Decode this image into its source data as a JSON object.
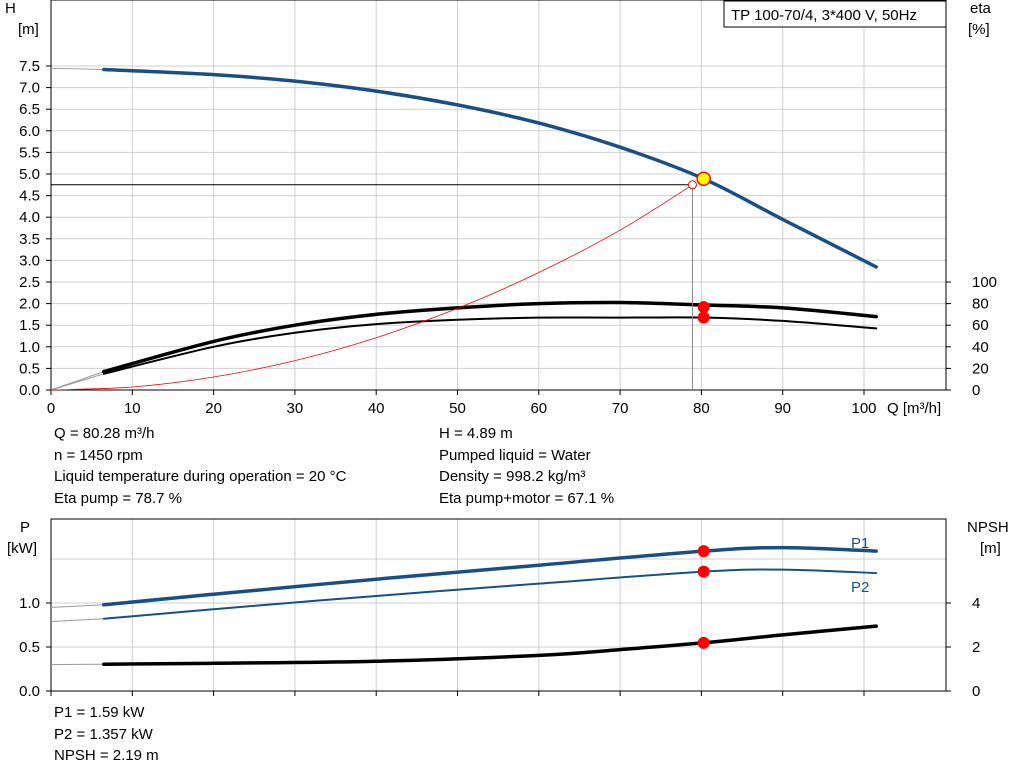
{
  "model_label": "TP 100-70/4, 3*400 V, 50Hz",
  "colors": {
    "blue": "#1a4f86",
    "black": "#000000",
    "red": "#ff0000",
    "grid": "#cfcfcf",
    "op_point": "#ffff00"
  },
  "top_chart": {
    "left_axis": {
      "label": "H",
      "unit": "[m]",
      "range": [
        0,
        7.5
      ],
      "ticks": [
        "0.0",
        "0.5",
        "1.0",
        "1.5",
        "2.0",
        "2.5",
        "3.0",
        "3.5",
        "4.0",
        "4.5",
        "5.0",
        "5.5",
        "6.0",
        "6.5",
        "7.0",
        "7.5"
      ]
    },
    "right_axis": {
      "label": "eta",
      "unit": "[%]",
      "range": [
        0,
        100
      ],
      "ticks": [
        "0",
        "20",
        "40",
        "60",
        "80",
        "100"
      ]
    },
    "x_axis": {
      "label": "Q [m³/h]",
      "range": [
        0,
        100
      ],
      "ticks": [
        "0",
        "10",
        "20",
        "30",
        "40",
        "50",
        "60",
        "70",
        "80",
        "90",
        "100"
      ]
    }
  },
  "bottom_chart": {
    "left_axis": {
      "label": "P",
      "unit": "[kW]",
      "ticks": [
        "0.0",
        "0.5",
        "1.0"
      ]
    },
    "right_axis": {
      "label": "NPSH",
      "unit": "[m]",
      "ticks": [
        "0",
        "2",
        "4"
      ]
    },
    "series_labels": {
      "p1": "P1",
      "p2": "P2"
    }
  },
  "info_top_left": [
    "Q = 80.28 m³/h",
    "n = 1450 rpm",
    "Liquid temperature during operation = 20 °C",
    "Eta pump = 78.7 %"
  ],
  "info_top_right": [
    "H = 4.89 m",
    "Pumped liquid = Water",
    "Density = 998.2 kg/m³",
    "Eta pump+motor = 67.1 %"
  ],
  "info_bottom": [
    "P1 = 1.59 kW",
    "P2 = 1.357 kW",
    "NPSH = 2.19 m"
  ],
  "chart_data": [
    {
      "type": "line",
      "title": "TP 100-70/4, 3*400 V, 50Hz",
      "xlabel": "Q [m³/h]",
      "ylabel": "H [m]",
      "ylabel_right": "eta [%]",
      "xlim": [
        0,
        100
      ],
      "ylim": [
        0,
        7.5
      ],
      "ylim_right": [
        0,
        100
      ],
      "grid": true,
      "operating_point": {
        "Q": 80.28,
        "H": 4.89
      },
      "series": [
        {
          "name": "H",
          "axis": "left",
          "x": [
            0,
            6.5,
            20,
            30,
            40,
            50,
            60,
            70,
            80.28,
            90,
            101.5
          ],
          "y": [
            7.45,
            7.42,
            7.3,
            7.15,
            6.92,
            6.6,
            6.18,
            5.62,
            4.89,
            3.95,
            2.85
          ]
        },
        {
          "name": "Eta pump+motor",
          "axis": "right",
          "x": [
            0,
            6.5,
            20,
            30,
            40,
            50,
            60,
            70,
            80.28,
            90,
            101.5
          ],
          "y": [
            0,
            15,
            40,
            53,
            61,
            65,
            67,
            67,
            67.1,
            64,
            57
          ]
        },
        {
          "name": "Eta pump",
          "axis": "right",
          "x": [
            0,
            6.5,
            20,
            30,
            40,
            50,
            60,
            70,
            80.28,
            90,
            101.5
          ],
          "y": [
            0,
            17,
            45,
            60,
            70,
            76,
            80,
            81,
            78.7,
            76,
            68
          ]
        },
        {
          "name": "System curve",
          "axis": "left",
          "x": [
            0,
            10,
            20,
            30,
            40,
            50,
            60,
            70,
            78.9
          ],
          "y": [
            0,
            0.07,
            0.3,
            0.68,
            1.21,
            1.89,
            2.72,
            3.7,
            4.75
          ]
        }
      ]
    },
    {
      "type": "line",
      "ylabel": "P [kW]",
      "ylabel_right": "NPSH [m]",
      "xlim": [
        0,
        100
      ],
      "ylim": [
        0,
        1.7
      ],
      "ylim_right": [
        0,
        6.8
      ],
      "grid": true,
      "operating_point": {
        "Q": 80.28,
        "P1": 1.59,
        "P2": 1.357,
        "NPSH": 2.19
      },
      "series": [
        {
          "name": "P1",
          "axis": "left",
          "x": [
            0,
            6.5,
            20,
            40,
            60,
            80.28,
            90,
            101.5
          ],
          "y": [
            0.95,
            0.98,
            1.1,
            1.27,
            1.43,
            1.59,
            1.63,
            1.59
          ]
        },
        {
          "name": "P2",
          "axis": "left",
          "x": [
            0,
            6.5,
            20,
            40,
            60,
            80.28,
            90,
            101.5
          ],
          "y": [
            0.79,
            0.82,
            0.93,
            1.08,
            1.22,
            1.357,
            1.38,
            1.34
          ]
        },
        {
          "name": "NPSH",
          "axis": "right",
          "x": [
            0,
            6.5,
            20,
            40,
            60,
            70,
            80.28,
            90,
            101.5
          ],
          "y": [
            1.2,
            1.22,
            1.26,
            1.35,
            1.62,
            1.88,
            2.19,
            2.55,
            2.95
          ]
        }
      ]
    }
  ]
}
